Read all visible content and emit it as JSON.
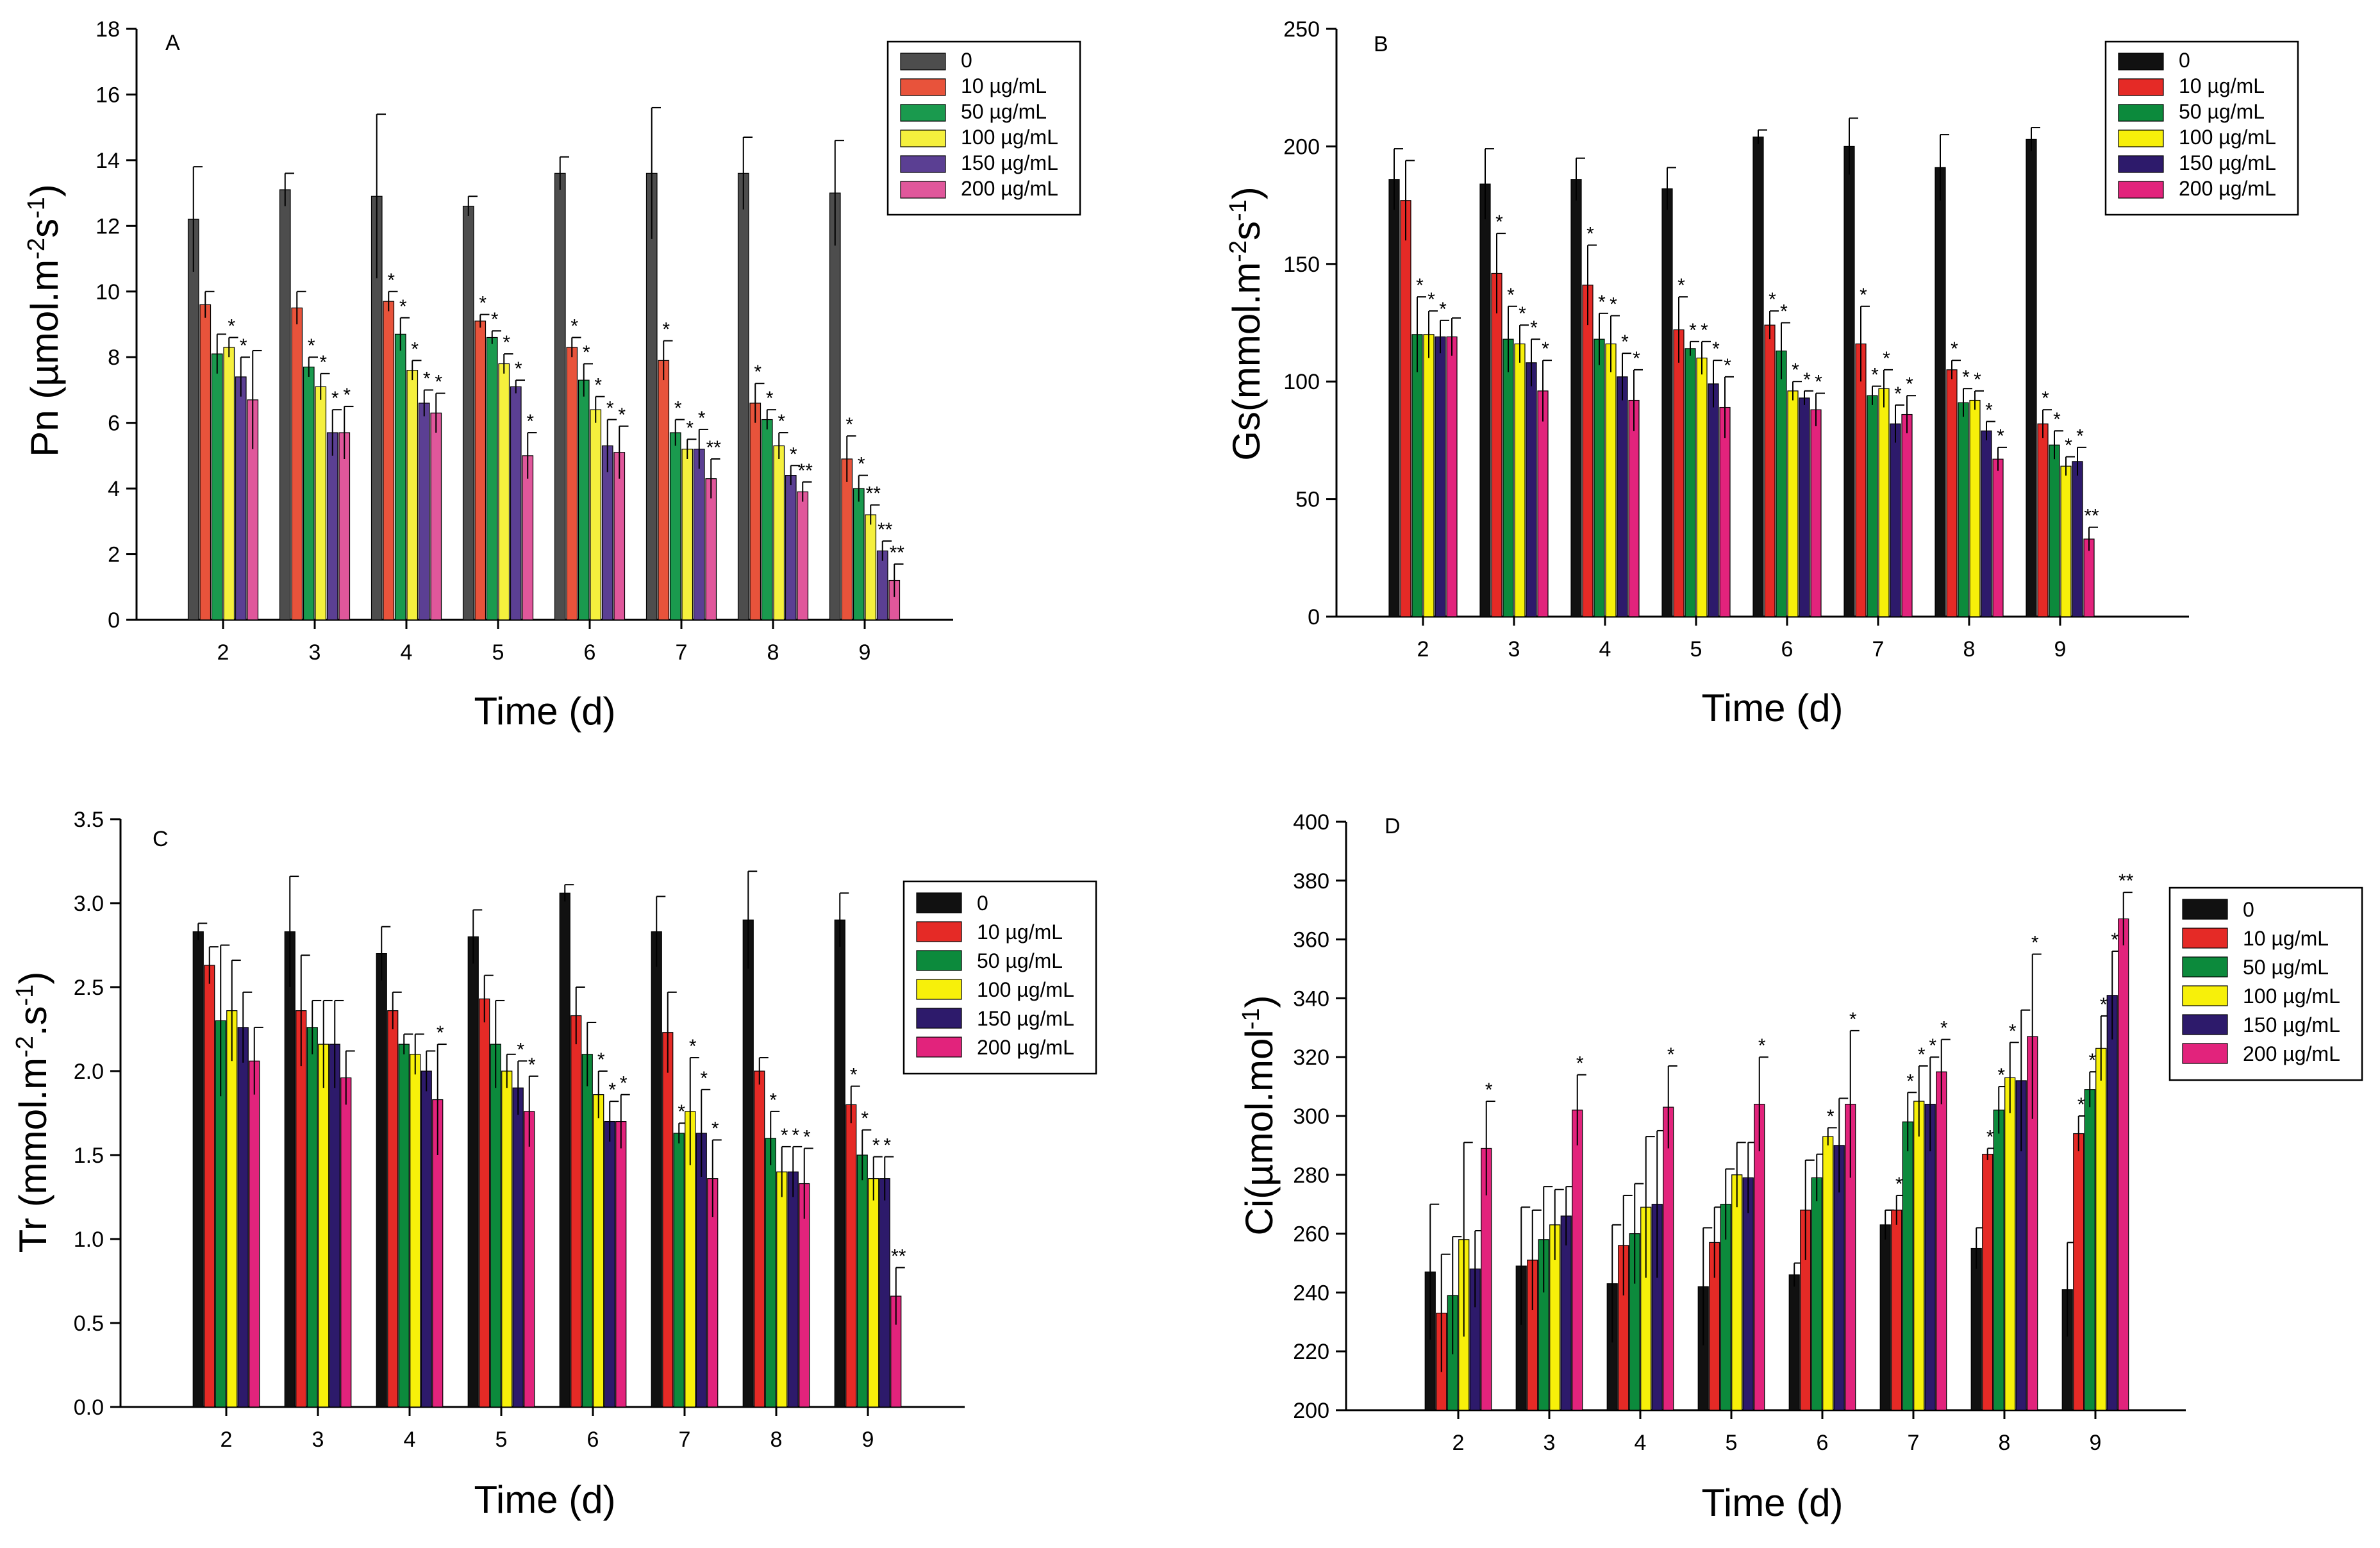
{
  "legend": {
    "title_ignored": "",
    "labels": [
      "0",
      "10 µg/mL",
      "50 µg/mL",
      "100 µg/mL",
      "150 µg/mL",
      "200 µg/mL"
    ]
  },
  "x_categories": [
    "2",
    "3",
    "4",
    "5",
    "6",
    "7",
    "8",
    "9"
  ],
  "chart_data": [
    {
      "id": "A",
      "type": "bar",
      "panel_label": "A",
      "xlabel": "Time (d)",
      "ylabel_parts": [
        "Pn (µmol.m",
        "-2",
        "s",
        "-1",
        ")"
      ],
      "ylim": [
        0,
        18
      ],
      "yticks": [
        0,
        2,
        4,
        6,
        8,
        10,
        12,
        14,
        16,
        18
      ],
      "colors": [
        "#4d4d4d",
        "#e8533b",
        "#1a9a4e",
        "#f5f03d",
        "#5b3f93",
        "#e0579b"
      ],
      "categories": [
        "2",
        "3",
        "4",
        "5",
        "6",
        "7",
        "8",
        "9"
      ],
      "series": [
        {
          "name": "0",
          "values": [
            12.2,
            13.1,
            12.9,
            12.6,
            13.6,
            13.6,
            13.6,
            13.0
          ],
          "errors": [
            1.6,
            0.5,
            2.5,
            0.3,
            0.5,
            2.0,
            1.1,
            1.6
          ]
        },
        {
          "name": "10 µg/mL",
          "values": [
            9.6,
            9.5,
            9.7,
            9.1,
            8.3,
            7.9,
            6.6,
            4.9
          ],
          "errors": [
            0.4,
            0.5,
            0.3,
            0.2,
            0.3,
            0.6,
            0.6,
            0.7
          ]
        },
        {
          "name": "50 µg/mL",
          "values": [
            8.1,
            7.7,
            8.7,
            8.6,
            7.3,
            5.7,
            6.1,
            4.0
          ],
          "errors": [
            0.6,
            0.3,
            0.5,
            0.2,
            0.5,
            0.4,
            0.3,
            0.4
          ]
        },
        {
          "name": "100 µg/mL",
          "values": [
            8.3,
            7.1,
            7.6,
            7.8,
            6.4,
            5.2,
            5.3,
            3.2
          ],
          "errors": [
            0.3,
            0.4,
            0.3,
            0.3,
            0.4,
            0.3,
            0.4,
            0.3
          ]
        },
        {
          "name": "150 µg/mL",
          "values": [
            7.4,
            5.7,
            6.6,
            7.1,
            5.3,
            5.2,
            4.4,
            2.1
          ],
          "errors": [
            0.6,
            0.7,
            0.4,
            0.2,
            0.8,
            0.6,
            0.3,
            0.3
          ]
        },
        {
          "name": "200 µg/mL",
          "values": [
            6.7,
            5.7,
            6.3,
            5.0,
            5.1,
            4.3,
            3.9,
            1.2
          ],
          "errors": [
            1.5,
            0.8,
            0.6,
            0.7,
            0.8,
            0.6,
            0.3,
            0.5
          ]
        }
      ],
      "annotations": {
        "2": [
          "",
          "",
          "",
          "*",
          "*",
          ""
        ],
        "3": [
          "",
          "",
          "*",
          "*",
          "*",
          "*"
        ],
        "4": [
          "",
          "*",
          "*",
          "*",
          "*",
          "*"
        ],
        "5": [
          "",
          "*",
          "*",
          "*",
          "*",
          "*"
        ],
        "6": [
          "",
          "*",
          "*",
          "*",
          "*",
          "*"
        ],
        "7": [
          "",
          "*",
          "*",
          "*",
          "*",
          "**"
        ],
        "8": [
          "",
          "*",
          "*",
          "*",
          "*",
          "**"
        ],
        "9": [
          "",
          "*",
          "*",
          "**",
          "**",
          "**"
        ]
      }
    },
    {
      "id": "B",
      "type": "bar",
      "panel_label": "B",
      "xlabel": "Time (d)",
      "ylabel_parts": [
        "Gs(mmol.m",
        "-2",
        "s",
        "-1",
        ")"
      ],
      "ylim": [
        0,
        250
      ],
      "yticks": [
        0,
        50,
        100,
        150,
        200,
        250
      ],
      "colors": [
        "#111111",
        "#e52a26",
        "#0c8a3c",
        "#f7f00a",
        "#2d1a6b",
        "#e2237c"
      ],
      "categories": [
        "2",
        "3",
        "4",
        "5",
        "6",
        "7",
        "8",
        "9"
      ],
      "series": [
        {
          "name": "0",
          "values": [
            186,
            184,
            186,
            182,
            204,
            200,
            191,
            203
          ],
          "errors": [
            13,
            15,
            9,
            9,
            3,
            12,
            14,
            5
          ]
        },
        {
          "name": "10 µg/mL",
          "values": [
            177,
            146,
            141,
            122,
            124,
            116,
            105,
            82
          ],
          "errors": [
            17,
            17,
            17,
            14,
            6,
            16,
            4,
            6
          ]
        },
        {
          "name": "50 µg/mL",
          "values": [
            120,
            118,
            118,
            114,
            113,
            94,
            91,
            73
          ],
          "errors": [
            16,
            14,
            11,
            3,
            12,
            4,
            6,
            6
          ]
        },
        {
          "name": "100 µg/mL",
          "values": [
            120,
            116,
            116,
            110,
            96,
            97,
            92,
            64
          ],
          "errors": [
            10,
            8,
            12,
            7,
            4,
            8,
            4,
            4
          ]
        },
        {
          "name": "150 µg/mL",
          "values": [
            119,
            108,
            102,
            99,
            93,
            82,
            79,
            66
          ],
          "errors": [
            7,
            10,
            10,
            10,
            3,
            8,
            4,
            6
          ]
        },
        {
          "name": "200 µg/mL",
          "values": [
            119,
            96,
            92,
            89,
            88,
            86,
            67,
            33
          ],
          "errors": [
            8,
            13,
            13,
            13,
            7,
            8,
            5,
            5
          ]
        }
      ],
      "annotations": {
        "2": [
          "",
          "",
          "*",
          "*",
          "*",
          ""
        ],
        "3": [
          "",
          "*",
          "*",
          "*",
          "*",
          "*"
        ],
        "4": [
          "",
          "*",
          "*",
          "*",
          "*",
          "*"
        ],
        "5": [
          "",
          "*",
          "*",
          "*",
          "*",
          "*"
        ],
        "6": [
          "",
          "*",
          "*",
          "*",
          "*",
          "*"
        ],
        "7": [
          "",
          "*",
          "*",
          "*",
          "*",
          "*"
        ],
        "8": [
          "",
          "*",
          "*",
          "*",
          "*",
          "*"
        ],
        "9": [
          "",
          "*",
          "*",
          "*",
          "*",
          "**"
        ]
      }
    },
    {
      "id": "C",
      "type": "bar",
      "panel_label": "C",
      "xlabel": "Time (d)",
      "ylabel_parts": [
        "Tr (mmol.m",
        "-2",
        ".s",
        "-1",
        ")"
      ],
      "ylim": [
        0,
        3.5
      ],
      "yticks": [
        0.0,
        0.5,
        1.0,
        1.5,
        2.0,
        2.5,
        3.0,
        3.5
      ],
      "tick_decimals": 1,
      "colors": [
        "#111111",
        "#e52a26",
        "#0c8a3c",
        "#f7f00a",
        "#2d1a6b",
        "#e2237c"
      ],
      "categories": [
        "2",
        "3",
        "4",
        "5",
        "6",
        "7",
        "8",
        "9"
      ],
      "series": [
        {
          "name": "0",
          "values": [
            2.83,
            2.83,
            2.7,
            2.8,
            3.06,
            2.83,
            2.9,
            2.9
          ],
          "errors": [
            0.05,
            0.33,
            0.16,
            0.16,
            0.05,
            0.21,
            0.29,
            0.16
          ]
        },
        {
          "name": "10 µg/mL",
          "values": [
            2.63,
            2.36,
            2.36,
            2.43,
            2.33,
            2.23,
            2.0,
            1.8
          ],
          "errors": [
            0.11,
            0.33,
            0.11,
            0.14,
            0.17,
            0.24,
            0.08,
            0.11
          ]
        },
        {
          "name": "50 µg/mL",
          "values": [
            2.3,
            2.26,
            2.16,
            2.16,
            2.1,
            1.63,
            1.6,
            1.5
          ],
          "errors": [
            0.45,
            0.16,
            0.06,
            0.26,
            0.19,
            0.06,
            0.16,
            0.15
          ]
        },
        {
          "name": "100 µg/mL",
          "values": [
            2.36,
            2.16,
            2.1,
            2.0,
            1.86,
            1.76,
            1.4,
            1.36
          ],
          "errors": [
            0.3,
            0.26,
            0.12,
            0.1,
            0.14,
            0.32,
            0.15,
            0.13
          ]
        },
        {
          "name": "150 µg/mL",
          "values": [
            2.26,
            2.16,
            2.0,
            1.9,
            1.7,
            1.63,
            1.4,
            1.36
          ],
          "errors": [
            0.21,
            0.26,
            0.12,
            0.16,
            0.12,
            0.26,
            0.15,
            0.13
          ]
        },
        {
          "name": "200 µg/mL",
          "values": [
            2.06,
            1.96,
            1.83,
            1.76,
            1.7,
            1.36,
            1.33,
            0.66
          ],
          "errors": [
            0.2,
            0.16,
            0.33,
            0.21,
            0.16,
            0.23,
            0.21,
            0.17
          ]
        }
      ],
      "annotations": {
        "2": [
          "",
          "",
          "",
          "",
          "",
          ""
        ],
        "3": [
          "",
          "",
          "",
          "",
          "",
          ""
        ],
        "4": [
          "",
          "",
          "",
          "",
          "",
          "*"
        ],
        "5": [
          "",
          "",
          "",
          "",
          "*",
          "*"
        ],
        "6": [
          "",
          "",
          "",
          "*",
          "*",
          "*"
        ],
        "7": [
          "",
          "",
          "*",
          "*",
          "*",
          "*"
        ],
        "8": [
          "",
          "",
          "*",
          "*",
          "*",
          "*"
        ],
        "9": [
          "",
          "*",
          "*",
          "*",
          "*",
          "**"
        ]
      }
    },
    {
      "id": "D",
      "type": "bar",
      "panel_label": "D",
      "xlabel": "Time (d)",
      "ylabel_parts": [
        "Ci(µmol.mol",
        "-1",
        "",
        "",
        ")"
      ],
      "ylim": [
        200,
        400
      ],
      "yticks": [
        200,
        220,
        240,
        260,
        280,
        300,
        320,
        340,
        360,
        380,
        400
      ],
      "colors": [
        "#111111",
        "#e52a26",
        "#0c8a3c",
        "#f7f00a",
        "#2d1a6b",
        "#e2237c"
      ],
      "categories": [
        "2",
        "3",
        "4",
        "5",
        "6",
        "7",
        "8",
        "9"
      ],
      "series": [
        {
          "name": "0",
          "values": [
            247,
            249,
            243,
            242,
            246,
            263,
            255,
            241
          ],
          "errors": [
            23,
            20,
            20,
            20,
            4,
            5,
            7,
            16
          ]
        },
        {
          "name": "10 µg/mL",
          "values": [
            233,
            251,
            256,
            257,
            268,
            268,
            287,
            294
          ],
          "errors": [
            20,
            17,
            17,
            12,
            17,
            5,
            2,
            6
          ]
        },
        {
          "name": "50 µg/mL",
          "values": [
            239,
            258,
            260,
            270,
            279,
            298,
            302,
            309
          ],
          "errors": [
            20,
            18,
            17,
            12,
            8,
            10,
            8,
            6
          ]
        },
        {
          "name": "100 µg/mL",
          "values": [
            258,
            263,
            269,
            280,
            293,
            305,
            313,
            323
          ],
          "errors": [
            33,
            12,
            24,
            11,
            3,
            12,
            12,
            11
          ]
        },
        {
          "name": "150 µg/mL",
          "values": [
            248,
            266,
            270,
            279,
            290,
            304,
            312,
            341
          ],
          "errors": [
            13,
            10,
            25,
            12,
            16,
            16,
            24,
            15
          ]
        },
        {
          "name": "200 µg/mL",
          "values": [
            289,
            302,
            303,
            304,
            304,
            315,
            327,
            367
          ],
          "errors": [
            16,
            12,
            14,
            16,
            25,
            11,
            28,
            9
          ]
        }
      ],
      "annotations": {
        "2": [
          "",
          "",
          "",
          "",
          "",
          "*"
        ],
        "3": [
          "",
          "",
          "",
          "",
          "",
          "*"
        ],
        "4": [
          "",
          "",
          "",
          "",
          "",
          "*"
        ],
        "5": [
          "",
          "",
          "",
          "",
          "",
          "*"
        ],
        "6": [
          "",
          "",
          "",
          "*",
          "",
          "*"
        ],
        "7": [
          "",
          "*",
          "*",
          "*",
          "*",
          "*"
        ],
        "8": [
          "",
          "*",
          "*",
          "*",
          "",
          "*"
        ],
        "9": [
          "",
          "*",
          "*",
          "*",
          "*",
          "**"
        ]
      }
    }
  ]
}
